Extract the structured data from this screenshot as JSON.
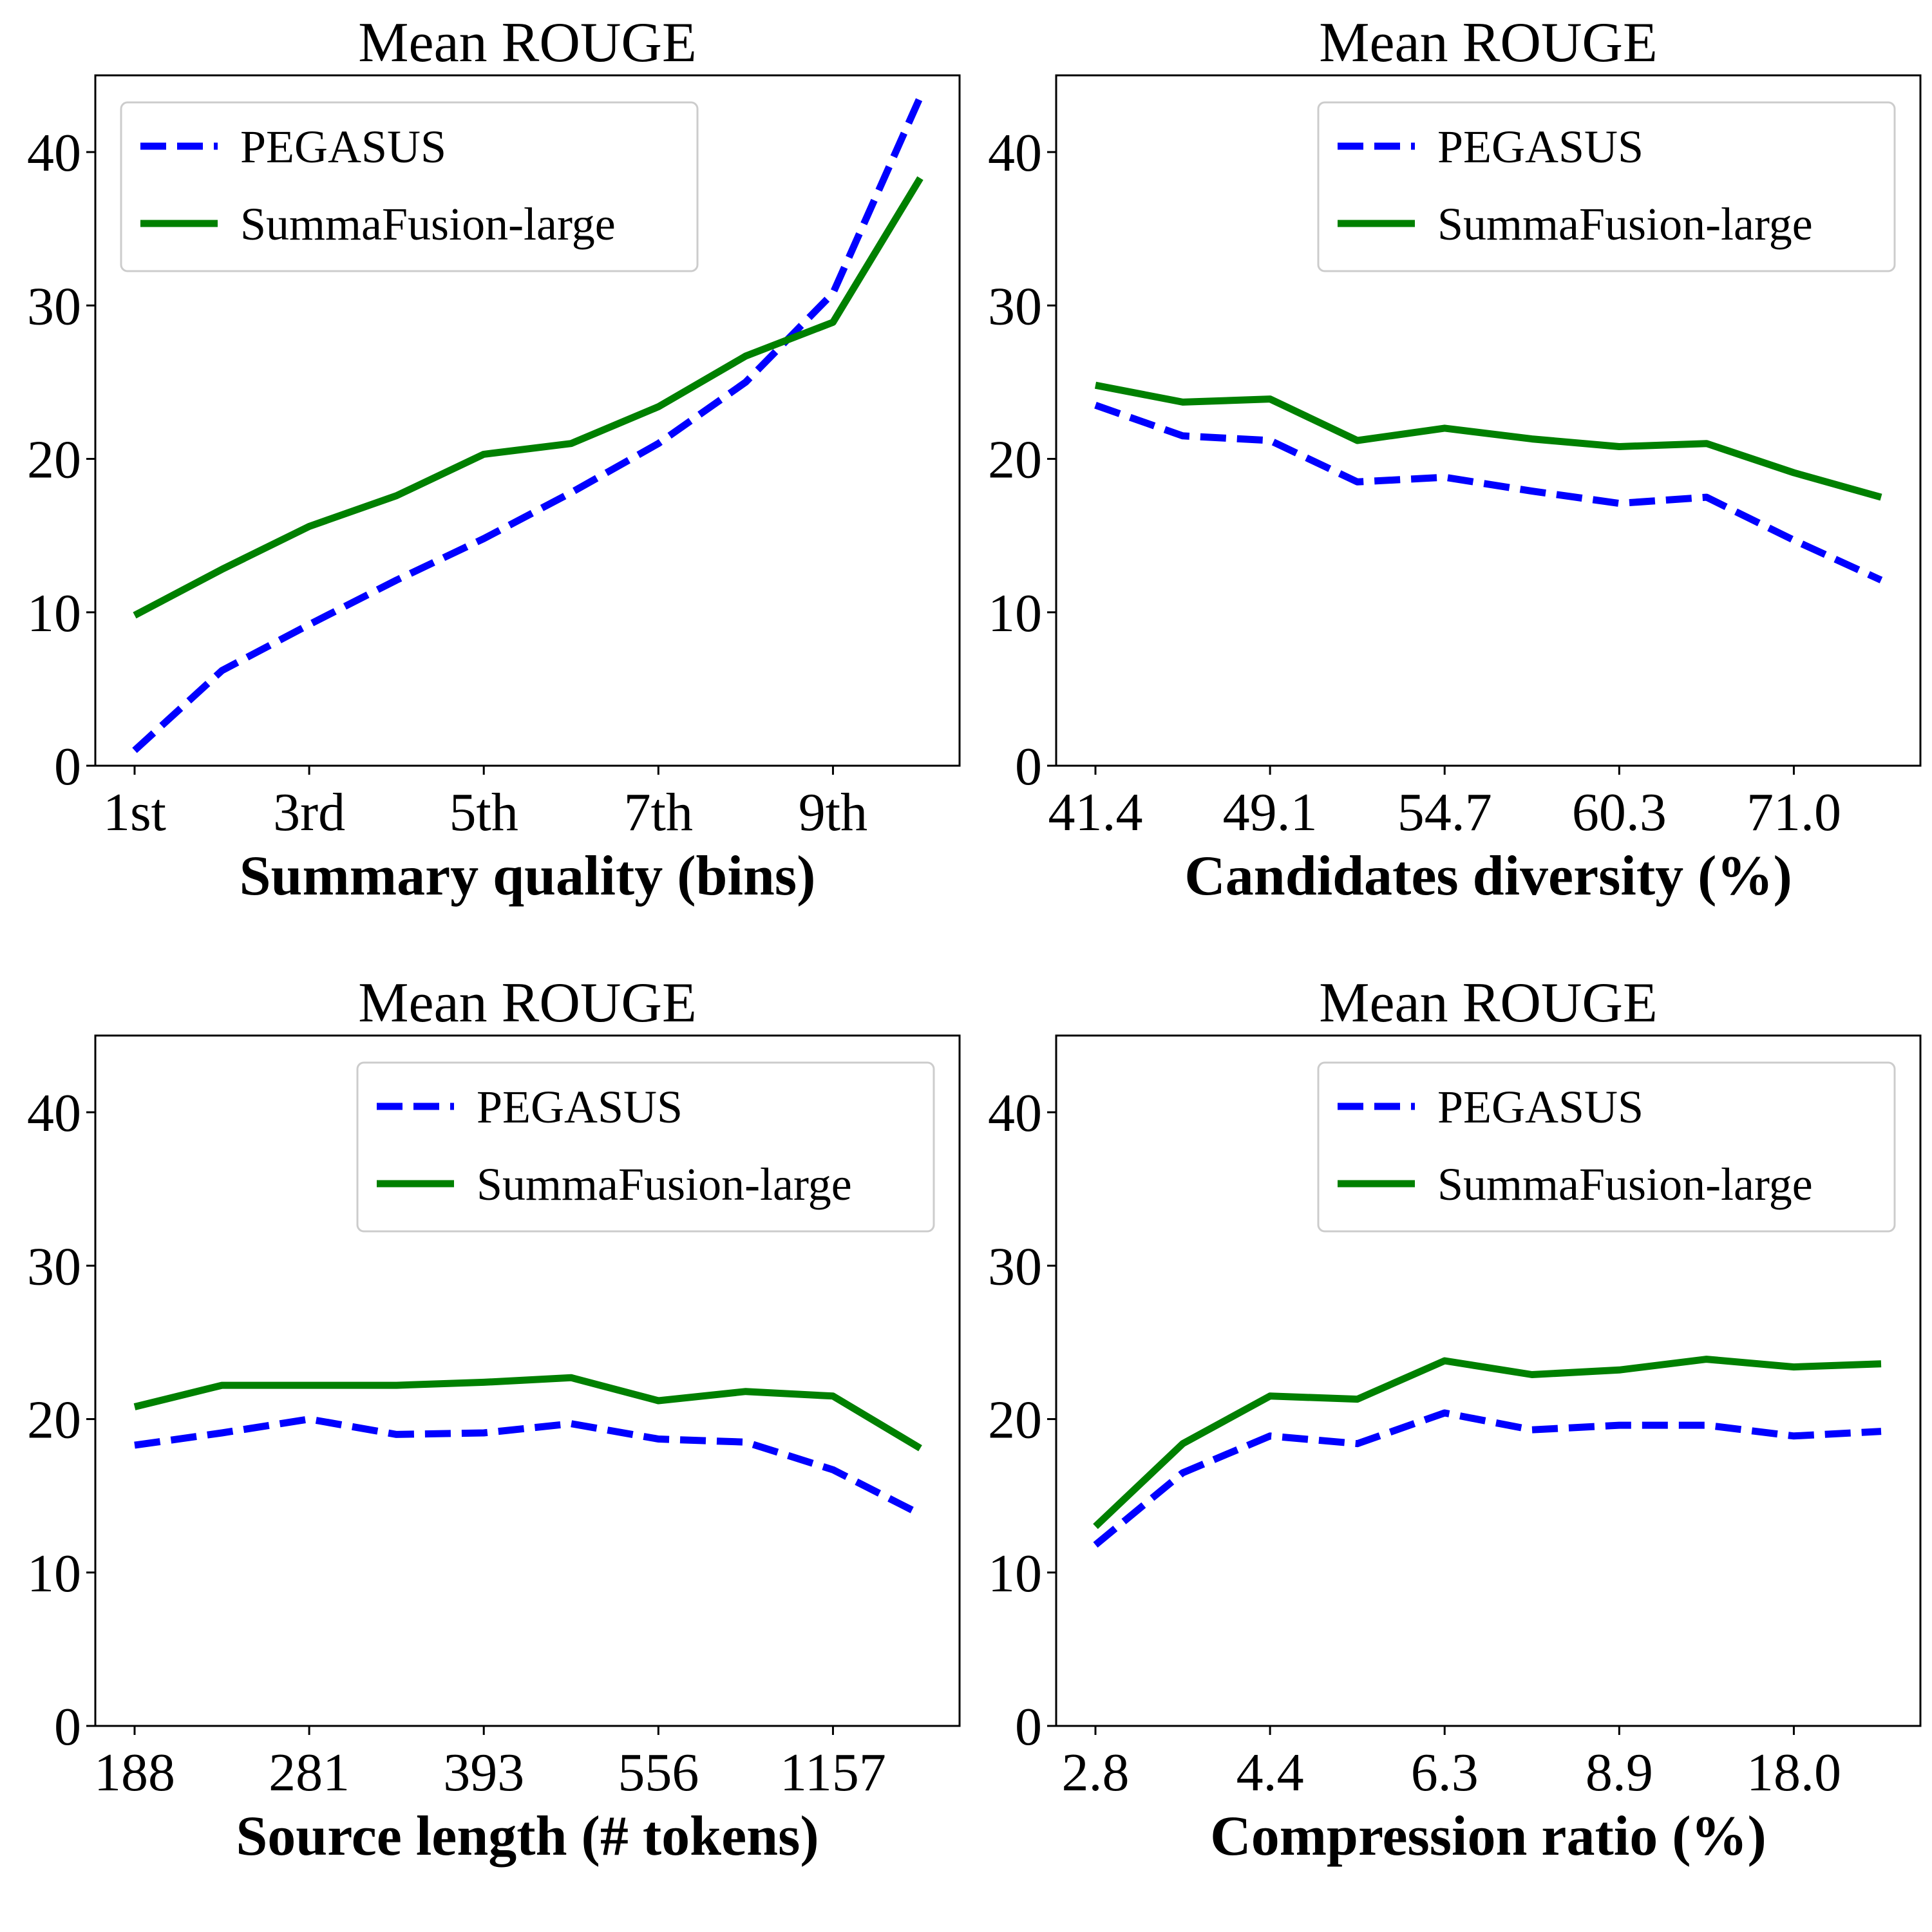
{
  "colors": {
    "PEGASUS": "#0000ff",
    "SummaFusion-large": "#008000"
  },
  "chart_data": [
    {
      "type": "line",
      "title": "Mean ROUGE",
      "xlabel": "Summary quality (bins)",
      "ylabel": "",
      "ylim": [
        0,
        45
      ],
      "yticks": [
        0,
        10,
        20,
        30,
        40
      ],
      "x": [
        0,
        1,
        2,
        3,
        4,
        5,
        6,
        7,
        8,
        9
      ],
      "xticks": [
        0,
        2,
        4,
        6,
        8
      ],
      "xtick_labels": [
        "1st",
        "3rd",
        "5th",
        "7th",
        "9th"
      ],
      "legend_position": "top-left",
      "series": [
        {
          "name": "PEGASUS",
          "style": "dashed",
          "values": [
            1.0,
            6.2,
            9.2,
            12.1,
            14.8,
            17.8,
            21.0,
            25.0,
            30.8,
            43.6
          ]
        },
        {
          "name": "SummaFusion-large",
          "style": "solid",
          "values": [
            9.8,
            12.8,
            15.6,
            17.6,
            20.3,
            21.0,
            23.4,
            26.7,
            28.9,
            38.3
          ]
        }
      ]
    },
    {
      "type": "line",
      "title": "Mean ROUGE",
      "xlabel": "Candidates diversity (%)",
      "ylabel": "",
      "ylim": [
        0,
        45
      ],
      "yticks": [
        0,
        10,
        20,
        30,
        40
      ],
      "x": [
        0,
        1,
        2,
        3,
        4,
        5,
        6,
        7,
        8,
        9
      ],
      "xticks": [
        0,
        2,
        4,
        6,
        8
      ],
      "xtick_labels": [
        "41.4",
        "49.1",
        "54.7",
        "60.3",
        "71.0"
      ],
      "legend_position": "top-right",
      "series": [
        {
          "name": "PEGASUS",
          "style": "dashed",
          "values": [
            23.5,
            21.5,
            21.2,
            18.5,
            18.8,
            17.9,
            17.1,
            17.5,
            14.7,
            12.1
          ]
        },
        {
          "name": "SummaFusion-large",
          "style": "solid",
          "values": [
            24.8,
            23.7,
            23.9,
            21.2,
            22.0,
            21.3,
            20.8,
            21.0,
            19.1,
            17.5
          ]
        }
      ]
    },
    {
      "type": "line",
      "title": "Mean ROUGE",
      "xlabel": "Source length (# tokens)",
      "ylabel": "",
      "ylim": [
        0,
        45
      ],
      "yticks": [
        0,
        10,
        20,
        30,
        40
      ],
      "x": [
        0,
        1,
        2,
        3,
        4,
        5,
        6,
        7,
        8,
        9
      ],
      "xticks": [
        0,
        2,
        4,
        6,
        8
      ],
      "xtick_labels": [
        "188",
        "281",
        "393",
        "556",
        "1157"
      ],
      "legend_position": "top-right",
      "series": [
        {
          "name": "PEGASUS",
          "style": "dashed",
          "values": [
            18.3,
            19.1,
            20.0,
            19.0,
            19.1,
            19.7,
            18.7,
            18.5,
            16.7,
            13.8
          ]
        },
        {
          "name": "SummaFusion-large",
          "style": "solid",
          "values": [
            20.8,
            22.2,
            22.2,
            22.2,
            22.4,
            22.7,
            21.2,
            21.8,
            21.5,
            18.1
          ]
        }
      ]
    },
    {
      "type": "line",
      "title": "Mean ROUGE",
      "xlabel": "Compression ratio (%)",
      "ylabel": "",
      "ylim": [
        0,
        45
      ],
      "yticks": [
        0,
        10,
        20,
        30,
        40
      ],
      "x": [
        0,
        1,
        2,
        3,
        4,
        5,
        6,
        7,
        8,
        9
      ],
      "xticks": [
        0,
        2,
        4,
        6,
        8
      ],
      "xtick_labels": [
        "2.8",
        "4.4",
        "6.3",
        "8.9",
        "18.0"
      ],
      "legend_position": "top-right",
      "series": [
        {
          "name": "PEGASUS",
          "style": "dashed",
          "values": [
            11.8,
            16.5,
            18.9,
            18.4,
            20.4,
            19.3,
            19.6,
            19.6,
            18.9,
            19.2
          ]
        },
        {
          "name": "SummaFusion-large",
          "style": "solid",
          "values": [
            13.0,
            18.4,
            21.5,
            21.3,
            23.8,
            22.9,
            23.2,
            23.9,
            23.4,
            23.6
          ]
        }
      ]
    }
  ]
}
